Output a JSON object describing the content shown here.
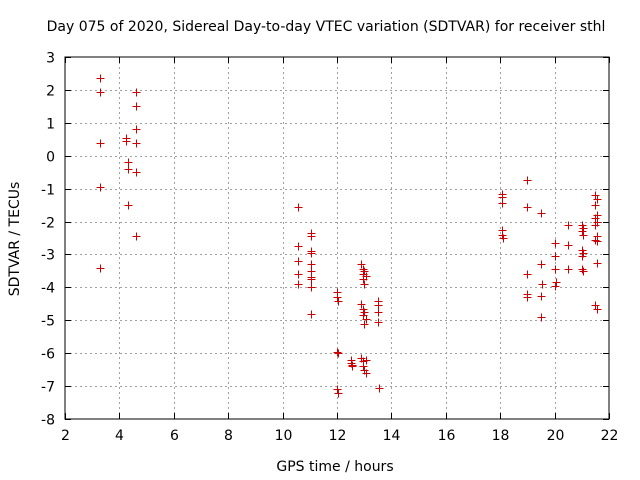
{
  "chart_data": {
    "type": "scatter",
    "title": "Day 075 of 2020, Sidereal Day-to-day VTEC variation (SDTVAR) for receiver sthl",
    "xlabel": "GPS time / hours",
    "ylabel": "SDTVAR / TECUs",
    "xlim": [
      2,
      22
    ],
    "ylim": [
      -8,
      3
    ],
    "xticks": [
      "2",
      "4",
      "6",
      "8",
      "10",
      "12",
      "14",
      "16",
      "18",
      "20",
      "22"
    ],
    "yticks": [
      "3",
      "2",
      "1",
      "0",
      "-1",
      "-2",
      "-3",
      "-4",
      "-5",
      "-6",
      "-7",
      "-8"
    ],
    "grid": true,
    "marker": "plus",
    "color": "#cc0000",
    "series": [
      {
        "name": "SDTVAR",
        "points": [
          [
            3.3,
            2.35
          ],
          [
            3.3,
            1.95
          ],
          [
            3.3,
            0.4
          ],
          [
            3.3,
            -0.95
          ],
          [
            3.3,
            -3.4
          ],
          [
            4.25,
            0.55
          ],
          [
            4.25,
            0.45
          ],
          [
            4.3,
            -0.2
          ],
          [
            4.3,
            -0.4
          ],
          [
            4.3,
            -1.5
          ],
          [
            4.6,
            1.95
          ],
          [
            4.6,
            1.5
          ],
          [
            4.6,
            0.8
          ],
          [
            4.6,
            0.4
          ],
          [
            4.6,
            -0.5
          ],
          [
            4.6,
            -2.45
          ],
          [
            10.55,
            -1.55
          ],
          [
            10.55,
            -2.75
          ],
          [
            10.55,
            -3.2
          ],
          [
            10.55,
            -3.6
          ],
          [
            10.55,
            -3.9
          ],
          [
            11.05,
            -2.35
          ],
          [
            11.05,
            -2.45
          ],
          [
            11.05,
            -2.9
          ],
          [
            11.05,
            -2.95
          ],
          [
            11.05,
            -3.3
          ],
          [
            11.05,
            -3.5
          ],
          [
            11.05,
            -3.7
          ],
          [
            11.05,
            -3.75
          ],
          [
            11.05,
            -4.0
          ],
          [
            11.05,
            -4.8
          ],
          [
            12.0,
            -4.15
          ],
          [
            12.0,
            -4.3
          ],
          [
            12.05,
            -4.4
          ],
          [
            12.0,
            -5.95
          ],
          [
            12.05,
            -6.0
          ],
          [
            12.0,
            -7.1
          ],
          [
            12.05,
            -7.2
          ],
          [
            12.5,
            -6.2
          ],
          [
            12.5,
            -6.3
          ],
          [
            12.55,
            -6.35
          ],
          [
            12.55,
            -6.4
          ],
          [
            12.9,
            -3.3
          ],
          [
            12.95,
            -3.45
          ],
          [
            13.0,
            -3.5
          ],
          [
            12.95,
            -3.6
          ],
          [
            13.05,
            -3.65
          ],
          [
            12.95,
            -3.75
          ],
          [
            13.0,
            -3.9
          ],
          [
            12.9,
            -4.5
          ],
          [
            12.95,
            -4.65
          ],
          [
            13.0,
            -4.75
          ],
          [
            12.95,
            -4.85
          ],
          [
            13.05,
            -4.95
          ],
          [
            13.0,
            -5.1
          ],
          [
            12.9,
            -6.15
          ],
          [
            12.95,
            -6.25
          ],
          [
            13.05,
            -6.2
          ],
          [
            12.95,
            -6.4
          ],
          [
            13.0,
            -6.5
          ],
          [
            13.05,
            -6.6
          ],
          [
            13.5,
            -4.4
          ],
          [
            13.5,
            -4.55
          ],
          [
            13.5,
            -4.75
          ],
          [
            13.5,
            -5.05
          ],
          [
            13.55,
            -7.05
          ],
          [
            18.05,
            -1.15
          ],
          [
            18.05,
            -1.25
          ],
          [
            18.05,
            -1.45
          ],
          [
            18.05,
            -2.25
          ],
          [
            18.05,
            -2.4
          ],
          [
            18.1,
            -2.5
          ],
          [
            19.0,
            -0.75
          ],
          [
            19.0,
            -1.55
          ],
          [
            19.0,
            -3.6
          ],
          [
            19.0,
            -4.2
          ],
          [
            19.0,
            -4.3
          ],
          [
            19.5,
            -1.75
          ],
          [
            19.5,
            -3.3
          ],
          [
            19.55,
            -3.9
          ],
          [
            19.5,
            -4.25
          ],
          [
            19.5,
            -4.9
          ],
          [
            20.0,
            -2.65
          ],
          [
            20.0,
            -3.05
          ],
          [
            20.0,
            -3.45
          ],
          [
            20.05,
            -3.85
          ],
          [
            20.0,
            -3.95
          ],
          [
            20.5,
            -2.1
          ],
          [
            20.5,
            -2.7
          ],
          [
            20.5,
            -3.45
          ],
          [
            21.0,
            -2.1
          ],
          [
            21.05,
            -2.2
          ],
          [
            21.0,
            -2.3
          ],
          [
            21.05,
            -2.4
          ],
          [
            21.0,
            -2.85
          ],
          [
            21.05,
            -2.95
          ],
          [
            21.0,
            -3.05
          ],
          [
            21.0,
            -3.45
          ],
          [
            21.05,
            -3.5
          ],
          [
            21.5,
            -1.2
          ],
          [
            21.55,
            -1.3
          ],
          [
            21.5,
            -1.5
          ],
          [
            21.55,
            -1.8
          ],
          [
            21.5,
            -1.9
          ],
          [
            21.55,
            -2.0
          ],
          [
            21.5,
            -2.1
          ],
          [
            21.55,
            -2.45
          ],
          [
            21.5,
            -2.55
          ],
          [
            21.55,
            -2.6
          ],
          [
            21.55,
            -3.25
          ],
          [
            21.5,
            -4.55
          ],
          [
            21.55,
            -4.65
          ]
        ]
      }
    ]
  }
}
